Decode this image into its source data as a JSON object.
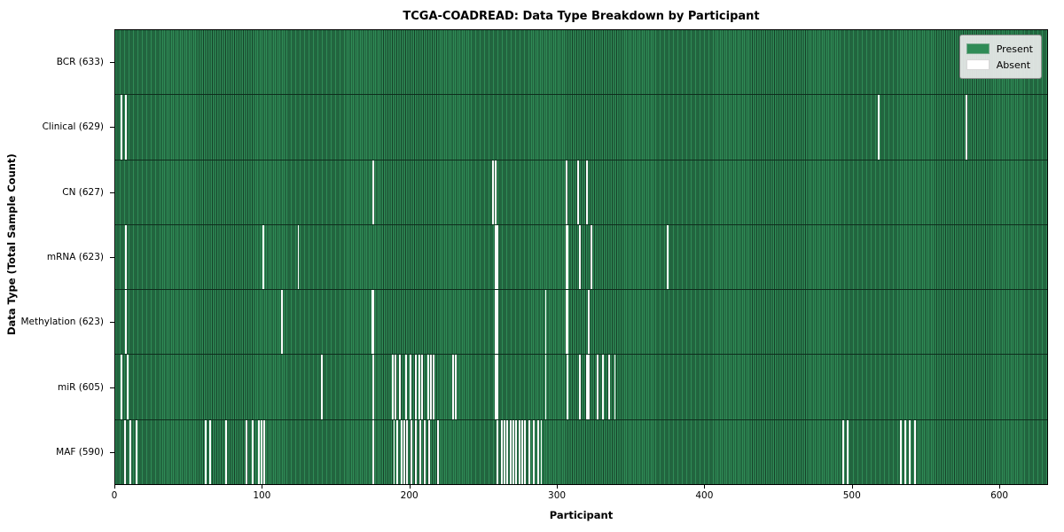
{
  "title": "TCGA-COADREAD: Data Type Breakdown by Participant",
  "axes": {
    "x_label": "Participant",
    "y_label": "Data Type (Total Sample Count)"
  },
  "legend": {
    "present_label": "Present",
    "absent_label": "Absent"
  },
  "colors": {
    "present": "#2f8b56",
    "bar_edge": "#163f28",
    "absent": "#ffffff",
    "legend_bg": "#eaeaea"
  },
  "chart_data": {
    "type": "heatmap",
    "description": "Presence/absence matrix: rows are data types, columns are participants; green cell = data present, white gap = absent",
    "title": "TCGA-COADREAD: Data Type Breakdown by Participant",
    "xlabel": "Participant",
    "ylabel": "Data Type (Total Sample Count)",
    "x_ticks": [
      0,
      100,
      200,
      300,
      400,
      500,
      600
    ],
    "x_range": [
      0,
      633
    ],
    "total_participants": 633,
    "legend_position": "upper right",
    "rows": [
      {
        "data_type": "BCR",
        "label": "BCR (633)",
        "present_count": 633,
        "absent_participants": []
      },
      {
        "data_type": "Clinical",
        "label": "Clinical (629)",
        "present_count": 629,
        "absent_participants": [
          4,
          7,
          518,
          578
        ]
      },
      {
        "data_type": "CN",
        "label": "CN (627)",
        "present_count": 627,
        "absent_participants": [
          175,
          256,
          258,
          306,
          314,
          320
        ]
      },
      {
        "data_type": "mRNA",
        "label": "mRNA (623)",
        "present_count": 623,
        "absent_participants": [
          7,
          100,
          124,
          258,
          259,
          306,
          307,
          315,
          323,
          375
        ]
      },
      {
        "data_type": "Methylation",
        "label": "Methylation (623)",
        "present_count": 623,
        "absent_participants": [
          7,
          113,
          174,
          175,
          258,
          259,
          292,
          306,
          307,
          321
        ]
      },
      {
        "data_type": "miR",
        "label": "miR (605)",
        "present_count": 605,
        "absent_participants": [
          4,
          8,
          140,
          175,
          188,
          190,
          193,
          197,
          200,
          204,
          206,
          208,
          212,
          214,
          216,
          229,
          231,
          258,
          259,
          292,
          307,
          315,
          320,
          321,
          327,
          331,
          335,
          339
        ]
      },
      {
        "data_type": "MAF",
        "label": "MAF (590)",
        "present_count": 590,
        "absent_participants": [
          6,
          10,
          14,
          61,
          64,
          75,
          89,
          93,
          97,
          99,
          101,
          175,
          189,
          191,
          194,
          196,
          198,
          201,
          204,
          207,
          210,
          213,
          219,
          259,
          262,
          264,
          266,
          268,
          270,
          272,
          274,
          276,
          278,
          281,
          284,
          287,
          289,
          494,
          497,
          533,
          536,
          539,
          543
        ]
      }
    ]
  }
}
